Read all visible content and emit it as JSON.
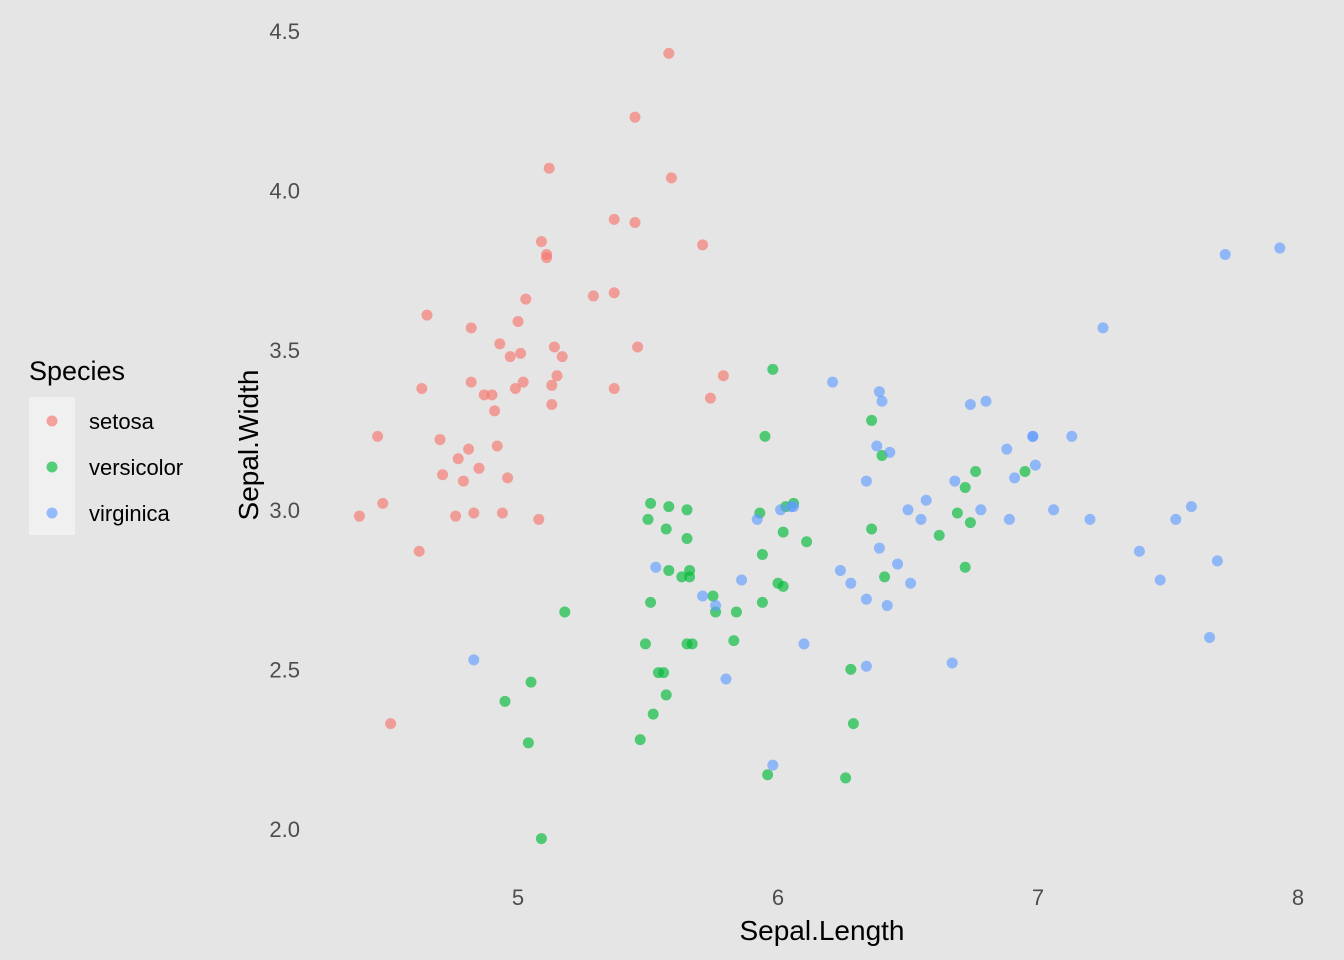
{
  "chart_data": {
    "type": "scatter",
    "title": "",
    "xlabel": "Sepal.Length",
    "ylabel": "Sepal.Width",
    "xlim": [
      4.2,
      8.05
    ],
    "ylim": [
      1.85,
      4.55
    ],
    "xticks": [
      5,
      6,
      7,
      8
    ],
    "yticks": [
      2.0,
      2.5,
      3.0,
      3.5,
      4.0,
      4.5
    ],
    "xtick_labels": [
      "5",
      "6",
      "7",
      "8"
    ],
    "ytick_labels": [
      "2.0",
      "2.5",
      "3.0",
      "3.5",
      "4.0",
      "4.5"
    ],
    "grid": false,
    "legend": {
      "title": "Species",
      "position": "left",
      "entries": [
        "setosa",
        "versicolor",
        "virginica"
      ]
    },
    "colors": {
      "setosa": "#F8766D",
      "versicolor": "#00BA38",
      "virginica": "#619CFF",
      "panel_background": "#E5E5E5",
      "legend_key_background": "#F0F0F0",
      "tick_text": "#4D4D4D"
    },
    "series": [
      {
        "name": "setosa",
        "x": [
          4.39,
          4.46,
          4.48,
          4.51,
          4.62,
          4.63,
          4.65,
          4.7,
          4.71,
          4.76,
          4.77,
          4.79,
          4.81,
          4.82,
          4.82,
          4.83,
          4.85,
          4.87,
          4.9,
          4.91,
          4.92,
          4.93,
          4.94,
          4.96,
          4.97,
          4.99,
          5.0,
          5.01,
          5.02,
          5.03,
          5.08,
          5.09,
          5.11,
          5.11,
          5.12,
          5.13,
          5.13,
          5.14,
          5.15,
          5.17,
          5.29,
          5.37,
          5.37,
          5.37,
          5.45,
          5.45,
          5.46,
          5.58,
          5.59,
          5.71,
          5.74,
          5.79
        ],
        "y": [
          2.98,
          3.23,
          3.02,
          2.33,
          2.87,
          3.38,
          3.61,
          3.22,
          3.11,
          2.98,
          3.16,
          3.09,
          3.19,
          3.4,
          3.57,
          2.99,
          3.13,
          3.36,
          3.36,
          3.31,
          3.2,
          3.52,
          2.99,
          3.1,
          3.48,
          3.38,
          3.59,
          3.49,
          3.4,
          3.66,
          2.97,
          3.84,
          3.79,
          3.8,
          4.07,
          3.39,
          3.33,
          3.51,
          3.42,
          3.48,
          3.67,
          3.68,
          3.38,
          3.91,
          3.9,
          4.23,
          3.51,
          4.43,
          4.04,
          3.83,
          3.35,
          3.42
        ]
      },
      {
        "name": "versicolor",
        "x": [
          4.95,
          5.04,
          5.05,
          5.09,
          5.18,
          5.47,
          5.49,
          5.5,
          5.51,
          5.51,
          5.52,
          5.54,
          5.56,
          5.57,
          5.57,
          5.58,
          5.58,
          5.63,
          5.65,
          5.65,
          5.65,
          5.66,
          5.66,
          5.67,
          5.75,
          5.76,
          5.83,
          5.84,
          5.93,
          5.94,
          5.94,
          5.95,
          5.96,
          5.98,
          6.0,
          6.02,
          6.02,
          6.03,
          6.06,
          6.11,
          6.26,
          6.28,
          6.29,
          6.36,
          6.36,
          6.4,
          6.41,
          6.62,
          6.69,
          6.72,
          6.72,
          6.74,
          6.76,
          6.95
        ],
        "y": [
          2.4,
          2.27,
          2.46,
          1.97,
          2.68,
          2.28,
          2.58,
          2.97,
          3.02,
          2.71,
          2.36,
          2.49,
          2.49,
          2.42,
          2.94,
          3.01,
          2.81,
          2.79,
          2.58,
          2.91,
          3.0,
          2.81,
          2.79,
          2.58,
          2.73,
          2.68,
          2.59,
          2.68,
          2.99,
          2.71,
          2.86,
          3.23,
          2.17,
          3.44,
          2.77,
          2.76,
          2.93,
          3.01,
          3.02,
          2.9,
          2.16,
          2.5,
          2.33,
          3.28,
          2.94,
          3.17,
          2.79,
          2.92,
          2.99,
          3.07,
          2.82,
          2.96,
          3.12,
          3.12
        ]
      },
      {
        "name": "virginica",
        "x": [
          4.83,
          5.53,
          5.71,
          5.76,
          5.8,
          5.86,
          5.92,
          5.98,
          6.01,
          6.05,
          6.06,
          6.1,
          6.21,
          6.24,
          6.28,
          6.34,
          6.34,
          6.34,
          6.38,
          6.39,
          6.39,
          6.4,
          6.42,
          6.43,
          6.46,
          6.5,
          6.51,
          6.55,
          6.57,
          6.67,
          6.68,
          6.74,
          6.78,
          6.8,
          6.88,
          6.89,
          6.91,
          6.98,
          6.98,
          6.99,
          7.06,
          7.13,
          7.2,
          7.25,
          7.39,
          7.47,
          7.53,
          7.59,
          7.66,
          7.69,
          7.72,
          7.93
        ],
        "y": [
          2.53,
          2.82,
          2.73,
          2.7,
          2.47,
          2.78,
          2.97,
          2.2,
          3.0,
          3.01,
          3.01,
          2.58,
          3.4,
          2.81,
          2.77,
          2.72,
          2.51,
          3.09,
          3.2,
          2.88,
          3.37,
          3.34,
          2.7,
          3.18,
          2.83,
          3.0,
          2.77,
          2.97,
          3.03,
          2.52,
          3.09,
          3.33,
          3.0,
          3.34,
          3.19,
          2.97,
          3.1,
          3.23,
          3.23,
          3.14,
          3.0,
          3.23,
          2.97,
          3.57,
          2.87,
          2.78,
          2.97,
          3.01,
          2.6,
          2.84,
          3.8,
          3.82
        ]
      }
    ]
  }
}
